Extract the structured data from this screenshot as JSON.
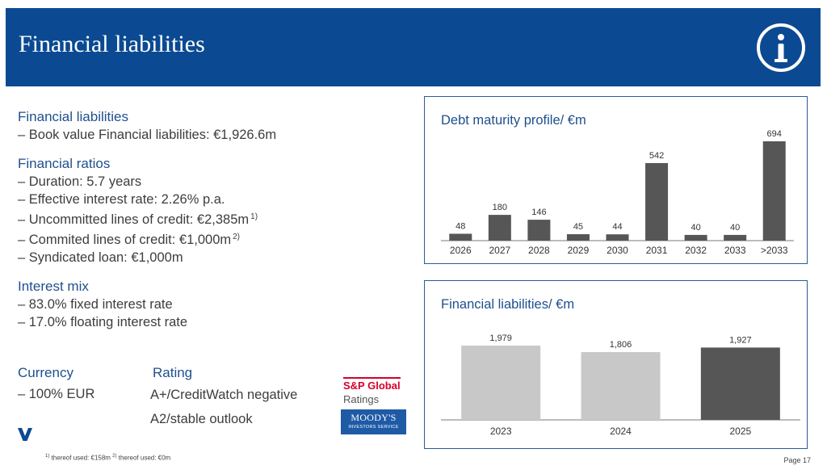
{
  "header": {
    "title": "Financial liabilities",
    "info_icon": "info-icon",
    "color": "#0b4a92"
  },
  "left": {
    "sections": [
      {
        "title": "Financial liabilities",
        "items": [
          {
            "text": "– Book value Financial liabilities: €1,926.6m"
          }
        ]
      },
      {
        "title": "Financial ratios",
        "items": [
          {
            "text": "– Duration: 5.7 years"
          },
          {
            "text": "– Effective interest rate: 2.26% p.a."
          },
          {
            "text": "– Uncommitted lines of credit: €2,385m",
            "sup": "1)"
          },
          {
            "text": "– Commited lines of credit: €1,000m",
            "sup": "2)"
          },
          {
            "text": "– Syndicated loan: €1,000m"
          }
        ]
      },
      {
        "title": "Interest mix",
        "items": [
          {
            "text": "– 83.0% fixed interest rate"
          },
          {
            "text": "– 17.0% floating interest rate"
          }
        ]
      }
    ],
    "currency": {
      "title": "Currency",
      "text": "– 100% EUR"
    },
    "rating": {
      "title": "Rating",
      "sp": "A+/CreditWatch negative",
      "moodys": "A2/stable outlook"
    }
  },
  "logos": {
    "sp_line1": "S&P Global",
    "sp_line2": "Ratings",
    "moodys_line1": "MOODY'S",
    "moodys_line2": "INVESTORS SERVICE"
  },
  "footnote": {
    "sup1": "1)",
    "text1": " thereof used: €158m ",
    "sup2": "2)",
    "text2": " thereof used: €0m"
  },
  "page": "Page 17",
  "colors": {
    "accent": "#0b4a92",
    "bar_dark": "#565656",
    "bar_light": "#c8c8c8"
  },
  "chart_data": [
    {
      "type": "bar",
      "title": "Debt maturity profile/ €m",
      "categories": [
        "2026",
        "2027",
        "2028",
        "2029",
        "2030",
        "2031",
        "2032",
        "2033",
        ">2033"
      ],
      "values": [
        48,
        180,
        146,
        45,
        44,
        542,
        40,
        40,
        694
      ],
      "xlabel": "",
      "ylabel": "",
      "bar_colors": [
        "#565656",
        "#565656",
        "#565656",
        "#565656",
        "#565656",
        "#565656",
        "#565656",
        "#565656",
        "#565656"
      ],
      "grid": false
    },
    {
      "type": "bar",
      "title": "Financial liabilities/ €m",
      "categories": [
        "2023",
        "2024",
        "2025"
      ],
      "values": [
        1979,
        1806,
        1927
      ],
      "value_labels": [
        "1,979",
        "1,806",
        "1,927"
      ],
      "xlabel": "",
      "ylabel": "",
      "bar_colors": [
        "#c8c8c8",
        "#c8c8c8",
        "#565656"
      ],
      "grid": false
    }
  ]
}
